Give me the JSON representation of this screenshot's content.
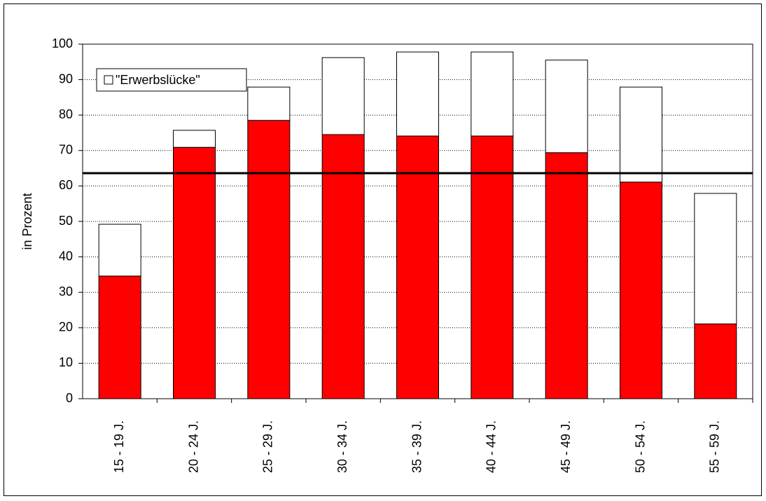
{
  "chart_data": {
    "type": "stacked-bar",
    "y_label": "in Prozent",
    "categories": [
      "15 - 19 J.",
      "20 - 24 J.",
      "25 - 29 J.",
      "30 - 34 J.",
      "35 - 39 J.",
      "40 - 44 J.",
      "45 - 49 J.",
      "50 - 54 J.",
      "55 - 59 J."
    ],
    "series": [
      {
        "color": "#ff0000",
        "values": [
          34.6,
          70.9,
          78.5,
          74.5,
          74.1,
          74.1,
          69.4,
          61.1,
          21.1
        ]
      },
      {
        "name": "\"Erwerbslücke\"",
        "color": "#ffffff",
        "values": [
          14.6,
          4.8,
          9.4,
          21.7,
          23.7,
          23.7,
          26.1,
          26.8,
          36.8
        ]
      }
    ],
    "reference_line": 63.6,
    "ylim": [
      0,
      100
    ],
    "yticks": [
      0,
      10,
      20,
      30,
      40,
      50,
      60,
      70,
      80,
      90,
      100
    ],
    "grid": true,
    "legend": "top-left"
  }
}
